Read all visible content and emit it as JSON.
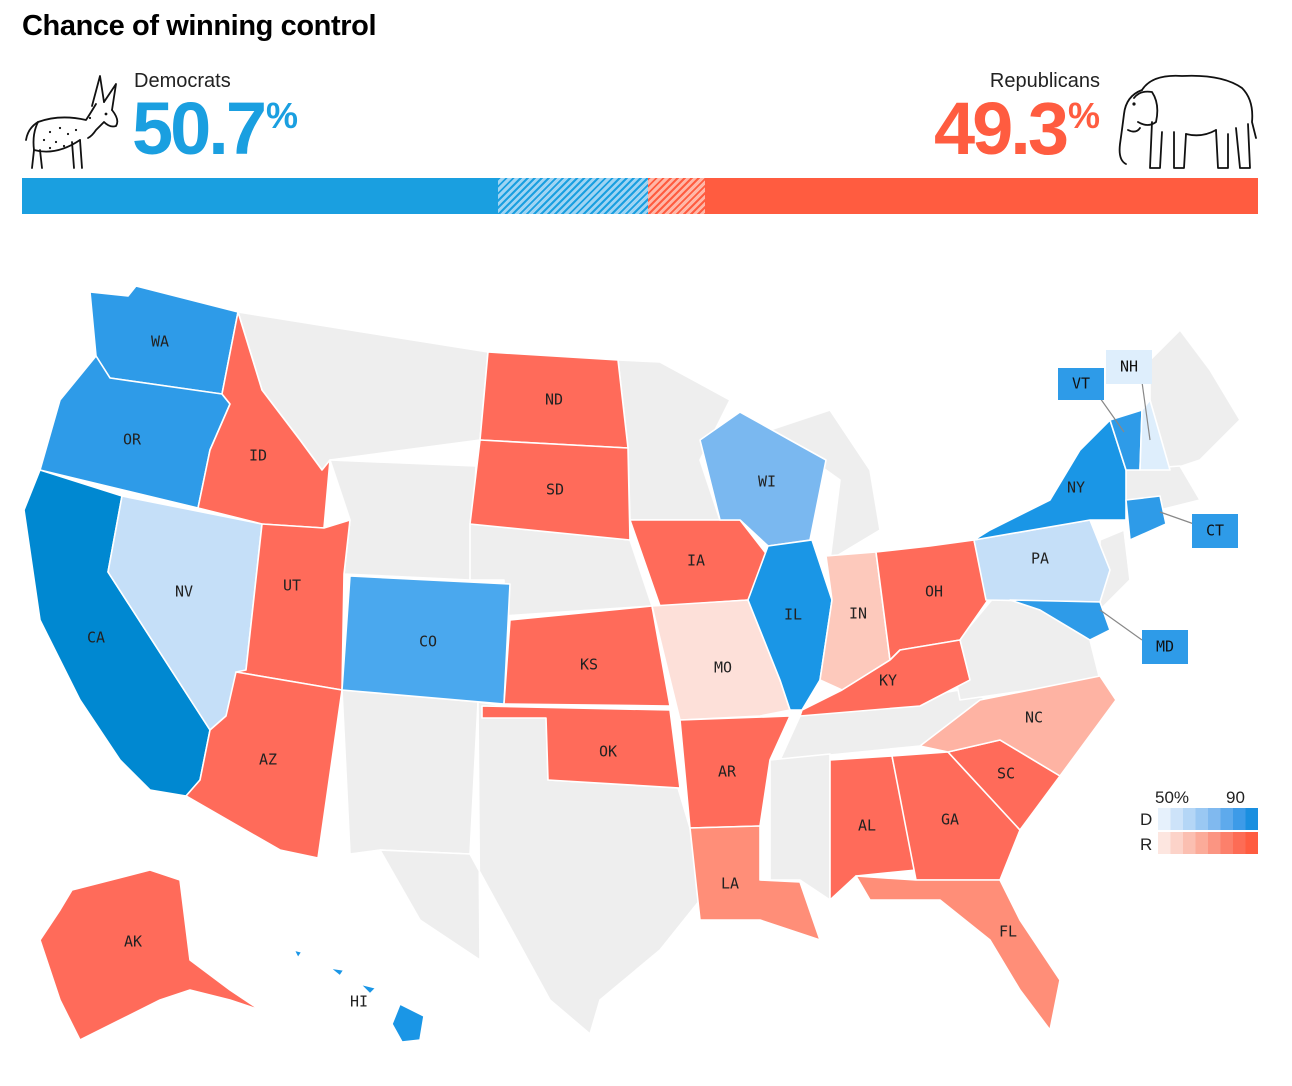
{
  "title": "Chance of winning control",
  "democrats": {
    "label": "Democrats",
    "value": "50.7",
    "unit": "%",
    "color": "#1a9fe0",
    "icon": "donkey-icon"
  },
  "republicans": {
    "label": "Republicans",
    "value": "49.3",
    "unit": "%",
    "color": "#ff5c40",
    "icon": "elephant-icon"
  },
  "map": {
    "states": {
      "WA": {
        "label": "WA",
        "party": "D",
        "shade": "#2e9be8"
      },
      "OR": {
        "label": "OR",
        "party": "D",
        "shade": "#2e9be8"
      },
      "CA": {
        "label": "CA",
        "party": "D",
        "shade": "#0088d1"
      },
      "NV": {
        "label": "NV",
        "party": "D",
        "shade": "#c5dff8"
      },
      "ID": {
        "label": "ID",
        "party": "R",
        "shade": "#ff6b5a"
      },
      "UT": {
        "label": "UT",
        "party": "R",
        "shade": "#ff6b5a"
      },
      "AZ": {
        "label": "AZ",
        "party": "R",
        "shade": "#ff6b5a"
      },
      "CO": {
        "label": "CO",
        "party": "D",
        "shade": "#4aa8ee"
      },
      "ND": {
        "label": "ND",
        "party": "R",
        "shade": "#ff6b5a"
      },
      "SD": {
        "label": "SD",
        "party": "R",
        "shade": "#ff6b5a"
      },
      "KS": {
        "label": "KS",
        "party": "R",
        "shade": "#ff6b5a"
      },
      "OK": {
        "label": "OK",
        "party": "R",
        "shade": "#ff6b5a"
      },
      "IA": {
        "label": "IA",
        "party": "R",
        "shade": "#ff6b5a"
      },
      "MO": {
        "label": "MO",
        "party": "R",
        "shade": "#fde0d9"
      },
      "AR": {
        "label": "AR",
        "party": "R",
        "shade": "#ff6b5a"
      },
      "LA": {
        "label": "LA",
        "party": "R",
        "shade": "#ff8e78"
      },
      "WI": {
        "label": "WI",
        "party": "D",
        "shade": "#7ab8f0"
      },
      "IL": {
        "label": "IL",
        "party": "D",
        "shade": "#1a96e6"
      },
      "IN": {
        "label": "IN",
        "party": "R",
        "shade": "#fdc9bc"
      },
      "OH": {
        "label": "OH",
        "party": "R",
        "shade": "#ff6b5a"
      },
      "KY": {
        "label": "KY",
        "party": "R",
        "shade": "#ff6b5a"
      },
      "AL": {
        "label": "AL",
        "party": "R",
        "shade": "#ff6b5a"
      },
      "GA": {
        "label": "GA",
        "party": "R",
        "shade": "#ff6b5a"
      },
      "SC": {
        "label": "SC",
        "party": "R",
        "shade": "#ff6b5a"
      },
      "NC": {
        "label": "NC",
        "party": "R",
        "shade": "#feb3a3"
      },
      "FL": {
        "label": "FL",
        "party": "R",
        "shade": "#ff8e78"
      },
      "PA": {
        "label": "PA",
        "party": "D",
        "shade": "#c5dff8"
      },
      "NY": {
        "label": "NY",
        "party": "D",
        "shade": "#1a96e6"
      },
      "VT": {
        "label": "VT",
        "party": "D",
        "shade": "#2e9be8"
      },
      "NH": {
        "label": "NH",
        "party": "D",
        "shade": "#deeefc"
      },
      "CT": {
        "label": "CT",
        "party": "D",
        "shade": "#2e9be8"
      },
      "MD": {
        "label": "MD",
        "party": "D",
        "shade": "#2e9be8"
      },
      "AK": {
        "label": "AK",
        "party": "R",
        "shade": "#ff6b5a"
      },
      "HI": {
        "label": "HI",
        "party": "D",
        "shade": "#1a96e6"
      }
    },
    "no_race_color": "#eeeeee"
  },
  "legend": {
    "tick_low": "50%",
    "tick_high": "90",
    "row_d": "D",
    "row_r": "R",
    "d_colors": [
      "#e6f1fc",
      "#cde3f9",
      "#b4d6f6",
      "#9ac8f3",
      "#80b9ef",
      "#5eaaec",
      "#3d9be8",
      "#1a8fe0"
    ],
    "r_colors": [
      "#fde6e0",
      "#fcd3c9",
      "#fbbfb1",
      "#fbab99",
      "#fb9582",
      "#fc806b",
      "#fd6c55",
      "#ff5c40"
    ]
  }
}
